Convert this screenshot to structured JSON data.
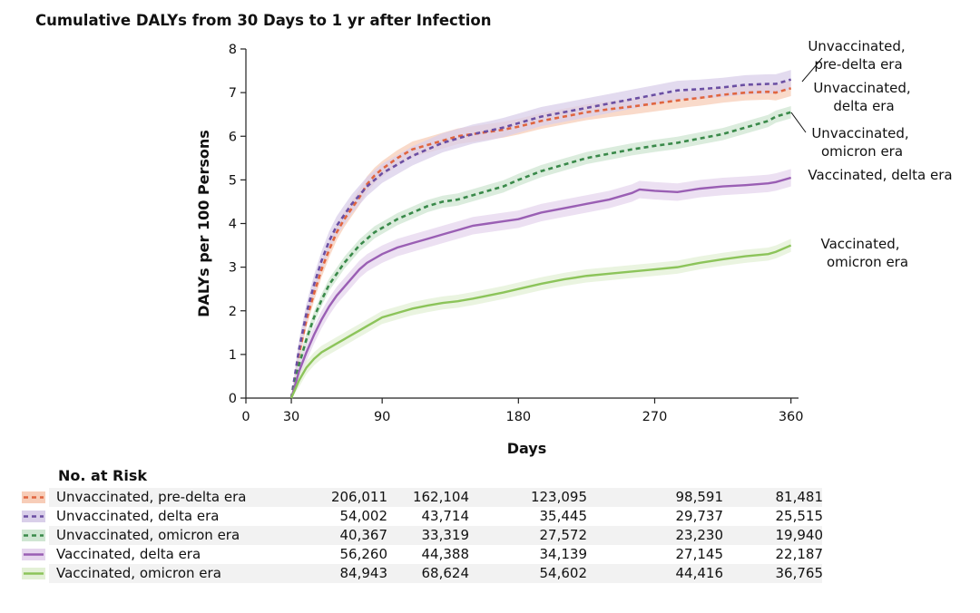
{
  "chart_data": {
    "type": "line",
    "title": "Cumulative DALYs from 30 Days to 1 yr after Infection",
    "xlabel": "Days",
    "ylabel": "DALYs per 100 Persons",
    "xlim": [
      0,
      365
    ],
    "ylim": [
      0,
      8
    ],
    "xticks": [
      0,
      30,
      90,
      180,
      270,
      360
    ],
    "yticks": [
      0,
      1,
      2,
      3,
      4,
      5,
      6,
      7,
      8
    ],
    "grid": false,
    "legend_position": "bottom",
    "series": [
      {
        "name": "Unvaccinated, pre-delta era",
        "label_lines": [
          "Unvaccinated,",
          "pre-delta era"
        ],
        "color": "#e0653f",
        "band_color": "#f7cdb8",
        "dashed": true,
        "band": 0.18,
        "x": [
          30,
          35,
          40,
          45,
          50,
          55,
          60,
          65,
          70,
          75,
          80,
          85,
          90,
          100,
          110,
          120,
          130,
          140,
          150,
          160,
          170,
          180,
          195,
          210,
          225,
          240,
          255,
          270,
          285,
          300,
          315,
          330,
          345,
          350,
          360
        ],
        "y": [
          0,
          1.0,
          1.8,
          2.4,
          2.95,
          3.4,
          3.8,
          4.1,
          4.35,
          4.6,
          4.9,
          5.1,
          5.25,
          5.5,
          5.7,
          5.8,
          5.9,
          6.0,
          6.05,
          6.1,
          6.15,
          6.22,
          6.35,
          6.45,
          6.55,
          6.62,
          6.68,
          6.75,
          6.82,
          6.88,
          6.95,
          7.0,
          7.02,
          7.0,
          7.1
        ]
      },
      {
        "name": "Unvaccinated, delta era",
        "label_lines": [
          "Unvaccinated,",
          "delta era"
        ],
        "color": "#6b4fa3",
        "band_color": "#d9cfe9",
        "dashed": true,
        "band": 0.22,
        "x": [
          30,
          35,
          40,
          45,
          50,
          55,
          60,
          65,
          70,
          75,
          80,
          85,
          90,
          100,
          110,
          120,
          130,
          140,
          150,
          160,
          170,
          180,
          195,
          210,
          225,
          240,
          255,
          270,
          285,
          300,
          315,
          330,
          345,
          350,
          360
        ],
        "y": [
          0,
          1.1,
          1.95,
          2.6,
          3.15,
          3.6,
          3.95,
          4.2,
          4.45,
          4.65,
          4.85,
          5.0,
          5.15,
          5.35,
          5.55,
          5.7,
          5.85,
          5.95,
          6.05,
          6.12,
          6.2,
          6.3,
          6.45,
          6.55,
          6.65,
          6.75,
          6.85,
          6.95,
          7.05,
          7.08,
          7.12,
          7.18,
          7.2,
          7.2,
          7.3
        ]
      },
      {
        "name": "Unvaccinated, omicron era",
        "label_lines": [
          "Unvaccinated,",
          "omicron era"
        ],
        "color": "#3a8a4a",
        "band_color": "#cfe6d2",
        "dashed": true,
        "band": 0.14,
        "x": [
          30,
          35,
          40,
          45,
          50,
          55,
          60,
          65,
          70,
          75,
          80,
          85,
          90,
          100,
          110,
          120,
          130,
          140,
          150,
          160,
          170,
          180,
          195,
          210,
          225,
          240,
          255,
          270,
          285,
          300,
          315,
          330,
          345,
          350,
          360
        ],
        "y": [
          0,
          0.75,
          1.35,
          1.85,
          2.25,
          2.6,
          2.85,
          3.1,
          3.3,
          3.5,
          3.65,
          3.8,
          3.9,
          4.1,
          4.25,
          4.4,
          4.5,
          4.55,
          4.65,
          4.75,
          4.85,
          5.0,
          5.2,
          5.35,
          5.5,
          5.6,
          5.7,
          5.78,
          5.85,
          5.95,
          6.05,
          6.2,
          6.35,
          6.45,
          6.55
        ]
      },
      {
        "name": "Vaccinated, delta era",
        "label_lines": [
          "Vaccinated, delta era"
        ],
        "color": "#9a5fb4",
        "band_color": "#e6d6ee",
        "dashed": false,
        "band": 0.2,
        "x": [
          30,
          35,
          40,
          45,
          50,
          55,
          60,
          65,
          70,
          75,
          80,
          85,
          90,
          100,
          110,
          120,
          130,
          140,
          150,
          160,
          170,
          180,
          195,
          210,
          225,
          240,
          255,
          260,
          270,
          285,
          300,
          315,
          330,
          345,
          350,
          360
        ],
        "y": [
          0,
          0.6,
          1.05,
          1.45,
          1.8,
          2.1,
          2.35,
          2.55,
          2.75,
          2.95,
          3.1,
          3.2,
          3.3,
          3.45,
          3.55,
          3.65,
          3.75,
          3.85,
          3.95,
          4.0,
          4.05,
          4.1,
          4.25,
          4.35,
          4.45,
          4.55,
          4.7,
          4.78,
          4.75,
          4.72,
          4.8,
          4.85,
          4.88,
          4.92,
          4.95,
          5.05
        ]
      },
      {
        "name": "Vaccinated, omicron era",
        "label_lines": [
          "Vaccinated,",
          "omicron era"
        ],
        "color": "#8cc45a",
        "band_color": "#e3f0d6",
        "dashed": false,
        "band": 0.15,
        "x": [
          30,
          35,
          40,
          45,
          50,
          55,
          60,
          65,
          70,
          75,
          80,
          85,
          90,
          100,
          110,
          120,
          130,
          140,
          150,
          160,
          170,
          180,
          195,
          210,
          225,
          240,
          255,
          270,
          285,
          300,
          315,
          330,
          345,
          350,
          360
        ],
        "y": [
          0,
          0.4,
          0.7,
          0.9,
          1.05,
          1.15,
          1.25,
          1.35,
          1.45,
          1.55,
          1.65,
          1.75,
          1.85,
          1.95,
          2.05,
          2.12,
          2.18,
          2.22,
          2.28,
          2.35,
          2.42,
          2.5,
          2.62,
          2.72,
          2.8,
          2.85,
          2.9,
          2.95,
          3.0,
          3.1,
          3.18,
          3.25,
          3.3,
          3.35,
          3.5
        ]
      }
    ]
  },
  "risk_table": {
    "heading": "No. at Risk",
    "columns": [
      30,
      90,
      180,
      270,
      360
    ],
    "rows": [
      {
        "label": "Unvaccinated, pre-delta era",
        "values": [
          "206,011",
          "162,104",
          "123,095",
          "98,591",
          "81,481"
        ]
      },
      {
        "label": "Unvaccinated, delta era",
        "values": [
          "54,002",
          "43,714",
          "35,445",
          "29,737",
          "25,515"
        ]
      },
      {
        "label": "Unvaccinated, omicron era",
        "values": [
          "40,367",
          "33,319",
          "27,572",
          "23,230",
          "19,940"
        ]
      },
      {
        "label": "Vaccinated, delta era",
        "values": [
          "56,260",
          "44,388",
          "34,139",
          "27,145",
          "22,187"
        ]
      },
      {
        "label": "Vaccinated, omicron era",
        "values": [
          "84,943",
          "68,624",
          "54,602",
          "44,416",
          "36,765"
        ]
      }
    ]
  }
}
